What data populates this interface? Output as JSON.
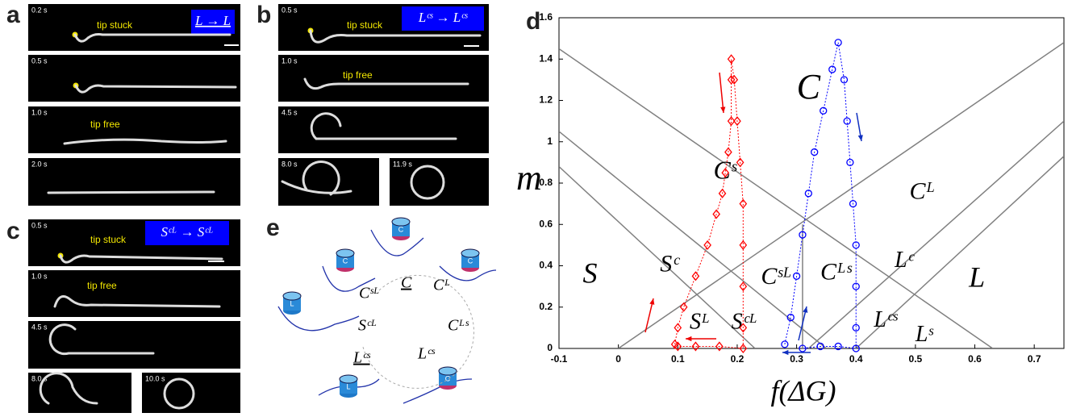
{
  "panels": {
    "a": {
      "letter": "a",
      "box": "L → L",
      "frames": [
        "0.2 s",
        "0.5 s",
        "1.0 s",
        "2.0 s"
      ],
      "notes": [
        "tip stuck",
        "tip free"
      ]
    },
    "b": {
      "letter": "b",
      "box": "Lᶜˢ → Lᶜˢ",
      "frames": [
        "0.5 s",
        "1.0 s",
        "4.5 s",
        "8.0 s",
        "11.9 s"
      ],
      "notes": [
        "tip stuck",
        "tip free"
      ]
    },
    "c": {
      "letter": "c",
      "box": "Sᶜᴸ → Sᶜᴸ",
      "frames": [
        "0.5 s",
        "1.0 s",
        "4.5 s",
        "8.0 s",
        "10.0 s"
      ],
      "notes": [
        "tip stuck",
        "tip free"
      ]
    },
    "e": {
      "letter": "e",
      "labels": [
        "C",
        "Cᴸ",
        "Cᴸˢ",
        "Lᶜˢ",
        "Lᶜˢ",
        "Sᶜᴸ",
        "Cˢᴸ"
      ],
      "icons": [
        "C",
        "C",
        "C",
        "L",
        "L",
        "C"
      ]
    }
  },
  "chart_data": {
    "type": "scatter",
    "letter": "d",
    "xlabel": "f(ΔG)",
    "ylabel": "m",
    "xlim": [
      -0.1,
      0.75
    ],
    "ylim": [
      0,
      1.6
    ],
    "xticks": [
      -0.1,
      0,
      0.1,
      0.2,
      0.3,
      0.4,
      0.5,
      0.6,
      0.7
    ],
    "yticks": [
      0,
      0.2,
      0.4,
      0.6,
      0.8,
      1,
      1.2,
      1.4,
      1.6
    ],
    "lines": [
      {
        "color": "#808080",
        "x": [
          -0.1,
          0.63
        ],
        "y": [
          1.45,
          0
        ]
      },
      {
        "color": "#808080",
        "x": [
          -0.1,
          0.35
        ],
        "y": [
          1.05,
          0
        ]
      },
      {
        "color": "#808080",
        "x": [
          -0.1,
          0.23
        ],
        "y": [
          0.88,
          0
        ]
      },
      {
        "color": "#808080",
        "x": [
          0,
          0.75
        ],
        "y": [
          0,
          1.48
        ]
      },
      {
        "color": "#808080",
        "x": [
          0.32,
          0.75
        ],
        "y": [
          0,
          1.1
        ]
      },
      {
        "color": "#808080",
        "x": [
          0.4,
          0.75
        ],
        "y": [
          0,
          0.93
        ]
      },
      {
        "color": "#808080",
        "x": [
          0.31,
          0.31
        ],
        "y": [
          0,
          0.6
        ]
      }
    ],
    "regions": [
      "C",
      "Cˢ",
      "Cᴸ",
      "S",
      "Sᶜ",
      "Cˢᴸ",
      "Cᴸˢ",
      "Lᶜ",
      "L",
      "Sᴸ",
      "Sᶜᴸ",
      "Lᶜˢ",
      "Lˢ"
    ],
    "series": [
      {
        "color": "#ff0000",
        "marker": "diamond",
        "x": [
          0.095,
          0.1,
          0.11,
          0.13,
          0.15,
          0.165,
          0.175,
          0.18,
          0.185,
          0.19,
          0.19,
          0.19,
          0.195,
          0.2,
          0.205,
          0.21,
          0.21,
          0.21,
          0.21,
          0.21,
          0.17,
          0.13,
          0.1
        ],
        "y": [
          0.02,
          0.1,
          0.2,
          0.35,
          0.5,
          0.65,
          0.75,
          0.85,
          0.95,
          1.1,
          1.3,
          1.4,
          1.3,
          1.1,
          0.9,
          0.7,
          0.5,
          0.3,
          0.1,
          0,
          0.01,
          0.01,
          0.01
        ]
      },
      {
        "color": "#0000ff",
        "marker": "circle",
        "x": [
          0.28,
          0.29,
          0.3,
          0.31,
          0.32,
          0.33,
          0.345,
          0.36,
          0.37,
          0.38,
          0.385,
          0.39,
          0.395,
          0.4,
          0.4,
          0.4,
          0.4,
          0.37,
          0.34,
          0.31
        ],
        "y": [
          0.02,
          0.15,
          0.35,
          0.55,
          0.75,
          0.95,
          1.15,
          1.35,
          1.48,
          1.3,
          1.1,
          0.9,
          0.7,
          0.5,
          0.3,
          0.1,
          0,
          0.01,
          0.01,
          0
        ]
      }
    ]
  }
}
